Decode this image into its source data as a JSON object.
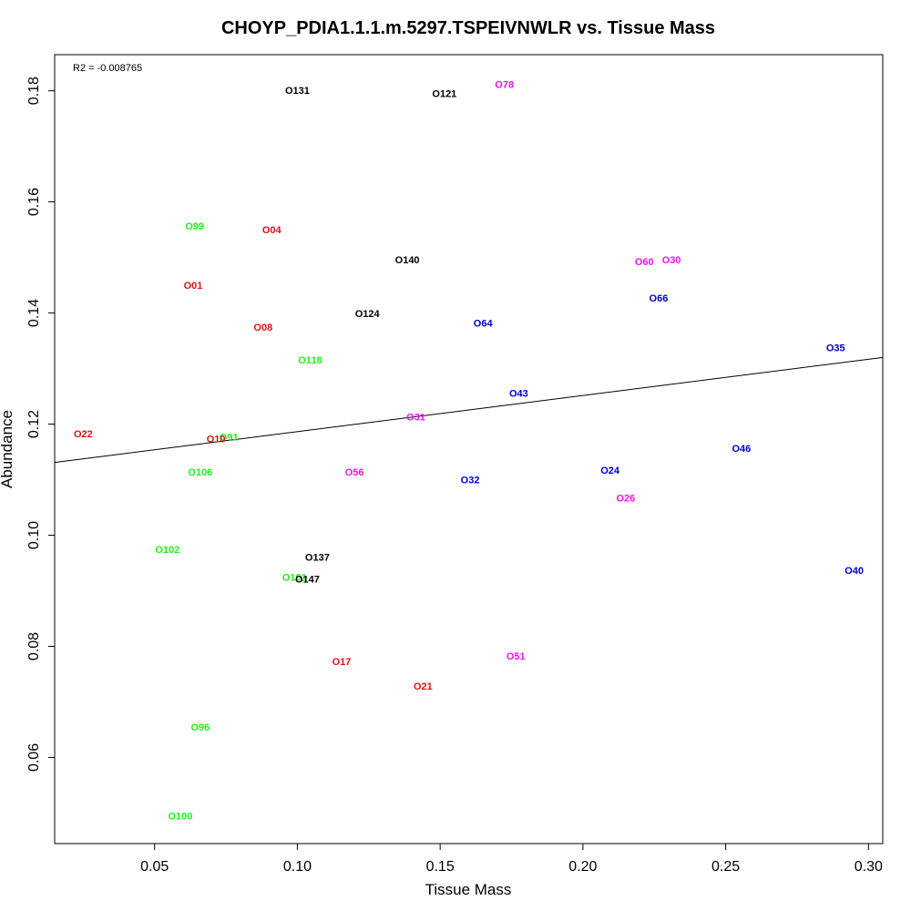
{
  "chart_data": {
    "type": "scatter",
    "title": "CHOYP_PDIA1.1.1.m.5297.TSPEIVNWLR vs. Tissue Mass",
    "xlabel": "Tissue Mass",
    "ylabel": "Abundance",
    "annotation": "R2 = -0.008765",
    "xlim": [
      0.015,
      0.305
    ],
    "ylim": [
      0.0445,
      0.1865
    ],
    "xticks": [
      0.05,
      0.1,
      0.15,
      0.2,
      0.25,
      0.3
    ],
    "xtick_labels": [
      "0.05",
      "0.10",
      "0.15",
      "0.20",
      "0.25",
      "0.30"
    ],
    "yticks": [
      0.06,
      0.08,
      0.1,
      0.12,
      0.14,
      0.16,
      0.18
    ],
    "ytick_labels": [
      "0.06",
      "0.08",
      "0.10",
      "0.12",
      "0.14",
      "0.16",
      "0.18"
    ],
    "grid": false,
    "regression_line": {
      "x": [
        0.015,
        0.305
      ],
      "y": [
        0.1131,
        0.132
      ]
    },
    "colors": {
      "red": "#dd1111",
      "green": "#22ee22",
      "black": "#000000",
      "blue": "#0000cc",
      "magenta": "#ee11ee"
    },
    "points": [
      {
        "label": "O131",
        "x": 0.1,
        "y": 0.1801,
        "color": "black"
      },
      {
        "label": "O121",
        "x": 0.1515,
        "y": 0.1795,
        "color": "black"
      },
      {
        "label": "O78",
        "x": 0.1725,
        "y": 0.1812,
        "color": "magenta"
      },
      {
        "label": "O99",
        "x": 0.064,
        "y": 0.1557,
        "color": "green"
      },
      {
        "label": "O04",
        "x": 0.091,
        "y": 0.155,
        "color": "red"
      },
      {
        "label": "O140",
        "x": 0.1385,
        "y": 0.1496,
        "color": "black"
      },
      {
        "label": "O60",
        "x": 0.2215,
        "y": 0.1493,
        "color": "magenta"
      },
      {
        "label": "O30",
        "x": 0.231,
        "y": 0.1496,
        "color": "magenta"
      },
      {
        "label": "O01",
        "x": 0.0635,
        "y": 0.145,
        "color": "red"
      },
      {
        "label": "O66",
        "x": 0.2265,
        "y": 0.1427,
        "color": "blue"
      },
      {
        "label": "O124",
        "x": 0.1245,
        "y": 0.1399,
        "color": "black"
      },
      {
        "label": "O64",
        "x": 0.165,
        "y": 0.1382,
        "color": "blue"
      },
      {
        "label": "O08",
        "x": 0.088,
        "y": 0.1375,
        "color": "red"
      },
      {
        "label": "O35",
        "x": 0.2885,
        "y": 0.1338,
        "color": "blue"
      },
      {
        "label": "O118",
        "x": 0.1045,
        "y": 0.1316,
        "color": "green"
      },
      {
        "label": "O43",
        "x": 0.1775,
        "y": 0.1256,
        "color": "blue"
      },
      {
        "label": "O31",
        "x": 0.1415,
        "y": 0.1213,
        "color": "magenta"
      },
      {
        "label": "O22",
        "x": 0.025,
        "y": 0.1183,
        "color": "red"
      },
      {
        "label": "O91",
        "x": 0.076,
        "y": 0.1177,
        "color": "green"
      },
      {
        "label": "O10",
        "x": 0.0715,
        "y": 0.1174,
        "color": "red"
      },
      {
        "label": "O46",
        "x": 0.2555,
        "y": 0.1157,
        "color": "blue"
      },
      {
        "label": "O106",
        "x": 0.066,
        "y": 0.1114,
        "color": "green"
      },
      {
        "label": "O56",
        "x": 0.12,
        "y": 0.1114,
        "color": "magenta"
      },
      {
        "label": "O24",
        "x": 0.2095,
        "y": 0.1117,
        "color": "blue"
      },
      {
        "label": "O32",
        "x": 0.1605,
        "y": 0.11,
        "color": "blue"
      },
      {
        "label": "O26",
        "x": 0.215,
        "y": 0.1067,
        "color": "magenta"
      },
      {
        "label": "O102",
        "x": 0.0545,
        "y": 0.0975,
        "color": "green"
      },
      {
        "label": "O137",
        "x": 0.107,
        "y": 0.0961,
        "color": "black"
      },
      {
        "label": "O40",
        "x": 0.295,
        "y": 0.0937,
        "color": "blue"
      },
      {
        "label": "O101",
        "x": 0.099,
        "y": 0.0925,
        "color": "green"
      },
      {
        "label": "O147",
        "x": 0.1035,
        "y": 0.0921,
        "color": "black"
      },
      {
        "label": "O51",
        "x": 0.1765,
        "y": 0.0783,
        "color": "magenta"
      },
      {
        "label": "O17",
        "x": 0.1155,
        "y": 0.0773,
        "color": "red"
      },
      {
        "label": "O21",
        "x": 0.144,
        "y": 0.0729,
        "color": "red"
      },
      {
        "label": "O96",
        "x": 0.066,
        "y": 0.0655,
        "color": "green"
      },
      {
        "label": "O100",
        "x": 0.059,
        "y": 0.0495,
        "color": "green"
      }
    ]
  }
}
